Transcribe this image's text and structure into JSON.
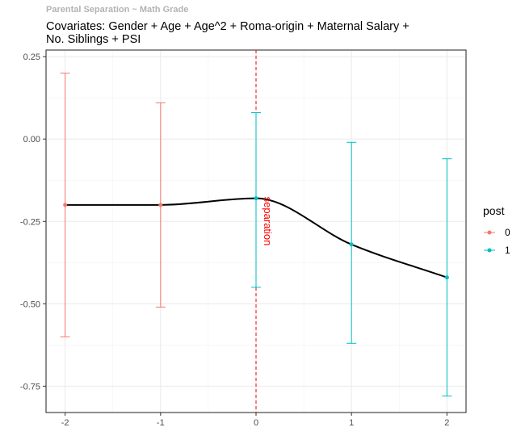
{
  "chart_data": {
    "type": "line",
    "title": "Parental Separation ~ Math Grade",
    "subtitle": "Covariates: Gender + Age + Age^2 + Roma-origin + Maternal Salary + No. Siblings + PSI",
    "x": [
      -2,
      -1,
      0,
      1,
      2
    ],
    "x_ticks": [
      -2,
      -1,
      0,
      1,
      2
    ],
    "xlim": [
      -2.2,
      2.2
    ],
    "y_ticks": [
      0.25,
      0.0,
      -0.25,
      -0.5,
      -0.75
    ],
    "y_tick_labels": [
      "0.25",
      "0.00",
      "-0.25",
      "-0.50",
      "-0.75"
    ],
    "ylim": [
      -0.83,
      0.27
    ],
    "grid": true,
    "points": [
      {
        "x": -2,
        "y": -0.2,
        "lower": -0.6,
        "upper": 0.2,
        "post": "0"
      },
      {
        "x": -1,
        "y": -0.2,
        "lower": -0.51,
        "upper": 0.11,
        "post": "0"
      },
      {
        "x": 0,
        "y": -0.18,
        "lower": -0.45,
        "upper": 0.08,
        "post": "1"
      },
      {
        "x": 1,
        "y": -0.32,
        "lower": -0.62,
        "upper": -0.01,
        "post": "1"
      },
      {
        "x": 2,
        "y": -0.42,
        "lower": -0.78,
        "upper": -0.06,
        "post": "1"
      }
    ],
    "vline": {
      "x": 0,
      "label": "separation",
      "color": "#ff0000"
    },
    "legend": {
      "title": "post",
      "position": "right",
      "entries": [
        {
          "label": "0",
          "color": "#F8766D"
        },
        {
          "label": "1",
          "color": "#00BFC4"
        }
      ]
    },
    "smooth_line_color": "#000000"
  }
}
